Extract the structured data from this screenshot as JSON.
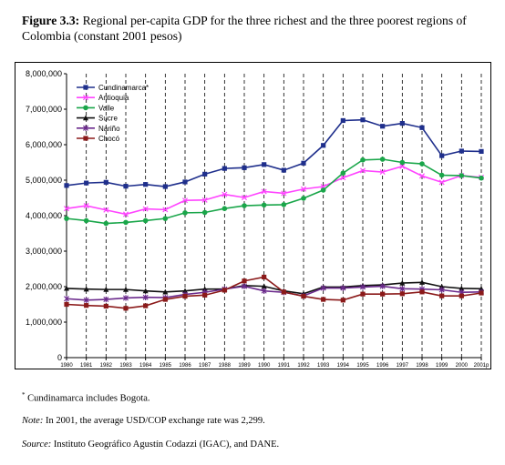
{
  "caption": {
    "label": "Figure 3.3:",
    "text": "Regional per-capita GDP for the three richest and the three poorest regions of Colombia (constant 2001 pesos)"
  },
  "notes": {
    "footnote_mark": "*",
    "footnote": "Cundinamarca includes Bogota.",
    "note_label": "Note:",
    "note_text": "In 2001, the average USD/COP exchange rate was 2,299.",
    "source_label": "Source:",
    "source_text": "Instituto Geográfico Agustín Codazzi (IGAC), and DANE."
  },
  "chart_data": {
    "type": "line",
    "title": "",
    "xlabel": "",
    "ylabel": "",
    "ylim": [
      0,
      8000000
    ],
    "yticks": [
      "0",
      "1,000,000",
      "2,000,000",
      "3,000,000",
      "4,000,000",
      "5,000,000",
      "6,000,000",
      "7,000,000",
      "8,000,000"
    ],
    "categories": [
      "1980",
      "1981",
      "1982",
      "1983",
      "1984",
      "1985",
      "1986",
      "1987",
      "1988",
      "1989",
      "1990",
      "1991",
      "1992",
      "1993",
      "1994",
      "1995",
      "1996",
      "1997",
      "1998",
      "1999",
      "2000",
      "2001p"
    ],
    "grid": "vertical dashed",
    "legend_position": "top-left",
    "series": [
      {
        "name": "Cundinamarca*",
        "color": "#1f2f8c",
        "marker": "square",
        "values": [
          4850000,
          4920000,
          4940000,
          4830000,
          4880000,
          4820000,
          4950000,
          5170000,
          5330000,
          5350000,
          5440000,
          5280000,
          5480000,
          5980000,
          6680000,
          6700000,
          6520000,
          6600000,
          6480000,
          5690000,
          5820000,
          5810000
        ]
      },
      {
        "name": "Antioquia",
        "color": "#ff44ff",
        "marker": "x",
        "values": [
          4200000,
          4280000,
          4160000,
          4040000,
          4190000,
          4170000,
          4430000,
          4440000,
          4600000,
          4510000,
          4680000,
          4630000,
          4750000,
          4820000,
          5070000,
          5270000,
          5230000,
          5390000,
          5120000,
          4940000,
          5130000,
          5080000
        ]
      },
      {
        "name": "Valle",
        "color": "#1aa64a",
        "marker": "circle",
        "values": [
          3920000,
          3860000,
          3780000,
          3810000,
          3860000,
          3920000,
          4080000,
          4090000,
          4200000,
          4280000,
          4300000,
          4310000,
          4490000,
          4720000,
          5200000,
          5570000,
          5590000,
          5500000,
          5460000,
          5140000,
          5130000,
          5060000
        ]
      },
      {
        "name": "Sucre",
        "color": "#111111",
        "marker": "triangle",
        "values": [
          1950000,
          1930000,
          1920000,
          1920000,
          1880000,
          1850000,
          1880000,
          1930000,
          1930000,
          2030000,
          2010000,
          1880000,
          1800000,
          1990000,
          1990000,
          2030000,
          2050000,
          2100000,
          2120000,
          2000000,
          1950000,
          1940000
        ]
      },
      {
        "name": "Nariño",
        "color": "#6b2a8c",
        "marker": "star",
        "values": [
          1660000,
          1620000,
          1640000,
          1680000,
          1700000,
          1690000,
          1780000,
          1840000,
          1930000,
          2010000,
          1880000,
          1840000,
          1740000,
          1960000,
          1960000,
          1990000,
          2010000,
          1940000,
          1930000,
          1910000,
          1840000,
          1850000
        ]
      },
      {
        "name": "Chocó",
        "color": "#8b1a1a",
        "marker": "square",
        "values": [
          1500000,
          1470000,
          1450000,
          1390000,
          1460000,
          1640000,
          1730000,
          1760000,
          1900000,
          2160000,
          2270000,
          1850000,
          1730000,
          1640000,
          1620000,
          1790000,
          1790000,
          1800000,
          1850000,
          1740000,
          1740000,
          1820000
        ]
      }
    ]
  }
}
